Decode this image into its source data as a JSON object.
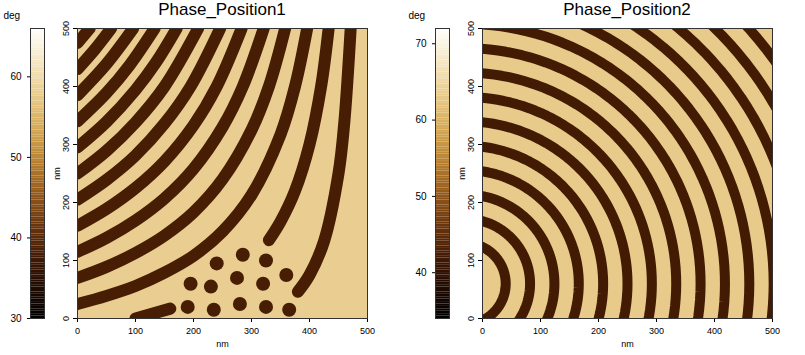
{
  "chart_data": [
    {
      "type": "heatmap",
      "title": "Phase_Position1",
      "xlabel": "nm",
      "ylabel": "nm",
      "xlim": [
        0,
        500
      ],
      "ylim": [
        0,
        500
      ],
      "xticks": [
        0,
        100,
        200,
        300,
        400,
        500
      ],
      "yticks": [
        0,
        100,
        200,
        300,
        400,
        500
      ],
      "colorbar": {
        "label": "deg",
        "range": [
          30,
          66
        ],
        "ticks": [
          30,
          40,
          50,
          60
        ]
      },
      "background_value": 58,
      "stripes": {
        "value": 38,
        "paths": [
          [
            [
              0,
              25
            ],
            [
              50,
              39
            ],
            [
              100,
              56
            ],
            [
              150,
              79
            ],
            [
              200,
              108
            ],
            [
              250,
              150
            ],
            [
              300,
              213
            ],
            [
              350,
              317
            ],
            [
              375,
              400
            ],
            [
              396,
              500
            ]
          ],
          [
            [
              0,
              70
            ],
            [
              50,
              89
            ],
            [
              100,
              113
            ],
            [
              150,
              143
            ],
            [
              200,
              183
            ],
            [
              250,
              240
            ],
            [
              300,
              325
            ],
            [
              330,
              400
            ],
            [
              358,
              500
            ]
          ],
          [
            [
              0,
              115
            ],
            [
              50,
              139
            ],
            [
              100,
              169
            ],
            [
              150,
              207
            ],
            [
              200,
              258
            ],
            [
              250,
              330
            ],
            [
              285,
              400
            ],
            [
              321,
              500
            ]
          ],
          [
            [
              0,
              160
            ],
            [
              50,
              189
            ],
            [
              100,
              225
            ],
            [
              150,
              271
            ],
            [
              200,
              333
            ],
            [
              240,
              400
            ],
            [
              283,
              500
            ]
          ],
          [
            [
              0,
              205
            ],
            [
              50,
              239
            ],
            [
              100,
              281
            ],
            [
              150,
              336
            ],
            [
              195,
              400
            ],
            [
              246,
              500
            ]
          ],
          [
            [
              0,
              250
            ],
            [
              50,
              289
            ],
            [
              100,
              338
            ],
            [
              150,
              400
            ],
            [
              208,
              500
            ]
          ],
          [
            [
              0,
              295
            ],
            [
              50,
              339
            ],
            [
              100,
              394
            ],
            [
              135,
              441
            ],
            [
              171,
              500
            ]
          ],
          [
            [
              0,
              340
            ],
            [
              50,
              389
            ],
            [
              90,
              437
            ],
            [
              133,
              500
            ]
          ],
          [
            [
              0,
              385
            ],
            [
              50,
              439
            ],
            [
              96,
              500
            ]
          ],
          [
            [
              0,
              430
            ],
            [
              30,
              464
            ],
            [
              58,
              500
            ]
          ],
          [
            [
              0,
              475
            ],
            [
              21,
              500
            ]
          ],
          [
            [
              100,
              0
            ],
            [
              160,
              17
            ]
          ],
          [
            [
              330,
              135
            ],
            [
              350,
              167
            ],
            [
              375,
              220
            ],
            [
              400,
              300
            ],
            [
              420,
              400
            ],
            [
              433,
              500
            ]
          ],
          [
            [
              380,
              46
            ],
            [
              400,
              75
            ],
            [
              425,
              133
            ],
            [
              450,
              250
            ],
            [
              460,
              338
            ],
            [
              471,
              500
            ]
          ]
        ]
      },
      "dots": {
        "value": 38,
        "points": [
          [
            195,
            60
          ],
          [
            240,
            95
          ],
          [
            285,
            110
          ],
          [
            325,
            100
          ],
          [
            230,
            55
          ],
          [
            275,
            70
          ],
          [
            320,
            60
          ],
          [
            360,
            75
          ],
          [
            190,
            20
          ],
          [
            235,
            15
          ],
          [
            280,
            25
          ],
          [
            325,
            20
          ],
          [
            365,
            15
          ]
        ]
      }
    },
    {
      "type": "heatmap",
      "title": "Phase_Position2",
      "xlabel": "nm",
      "ylabel": "nm",
      "xlim": [
        0,
        500
      ],
      "ylim": [
        0,
        500
      ],
      "xticks": [
        0,
        100,
        200,
        300,
        400,
        500
      ],
      "yticks": [
        0,
        100,
        200,
        300,
        400,
        500
      ],
      "colorbar": {
        "label": "deg",
        "range": [
          34,
          72
        ],
        "ticks": [
          40,
          50,
          60,
          70
        ]
      },
      "background_value": 63,
      "rings": {
        "value": 42,
        "center": [
          -30,
          60
        ],
        "radii": [
          70,
          112,
          154,
          196,
          238,
          280,
          322,
          364,
          406,
          448,
          490,
          532,
          574,
          616,
          658,
          700
        ]
      }
    }
  ]
}
